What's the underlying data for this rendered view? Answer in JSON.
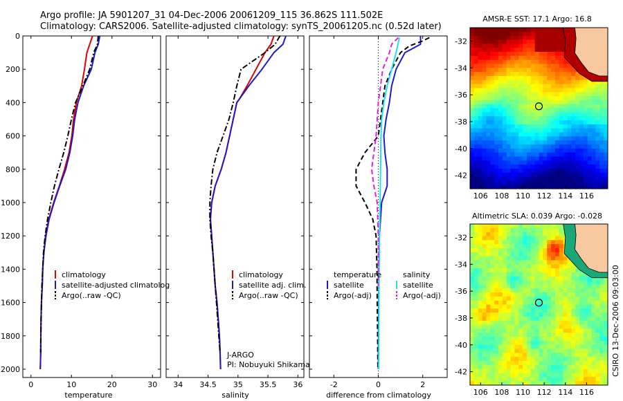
{
  "header": {
    "line1": "Argo profile: JA 5901207_31 04-Dec-2006 20061209_115 36.862S 111.502E",
    "line2": "Climatology: CARS2006. Satellite-adjusted climatology: synTS_20061205.nc (0.52d later)"
  },
  "footer_vertical": "CSIRO 13-Dec-2006 09:03:00",
  "colors": {
    "climatology": "#e00000",
    "satellite": "#1a1acc",
    "argo": "#000000",
    "satellite_salinity": "#22e0e8",
    "argo_adj_salinity": "#e020e0",
    "land": "#f8c8a0"
  },
  "chart_data": [
    {
      "type": "line",
      "panel": "temperature",
      "xlabel": "temperature",
      "ylabel": "",
      "xlim": [
        -2,
        32
      ],
      "ylim": [
        2050,
        0
      ],
      "xticks": [
        0,
        10,
        20,
        30
      ],
      "yticks": [
        0,
        200,
        400,
        600,
        800,
        1000,
        1200,
        1400,
        1600,
        1800,
        2000
      ],
      "legend": [
        "climatology",
        "satellite-adjusted climatolog",
        "Argo(..raw -QC)"
      ],
      "series": [
        {
          "name": "climatology",
          "style": "solid",
          "color": "#e00000",
          "points": [
            [
              15.2,
              0
            ],
            [
              14.5,
              50
            ],
            [
              13.8,
              100
            ],
            [
              13.2,
              200
            ],
            [
              12.5,
              300
            ],
            [
              11.2,
              400
            ],
            [
              10.5,
              500
            ],
            [
              10.1,
              600
            ],
            [
              9.4,
              700
            ],
            [
              8.3,
              800
            ],
            [
              7.0,
              900
            ],
            [
              5.6,
              1000
            ],
            [
              4.4,
              1100
            ],
            [
              3.6,
              1200
            ],
            [
              3.2,
              1300
            ],
            [
              2.9,
              1400
            ],
            [
              2.8,
              1500
            ],
            [
              2.6,
              1600
            ],
            [
              2.5,
              1700
            ],
            [
              2.45,
              1800
            ],
            [
              2.4,
              1900
            ],
            [
              2.3,
              2000
            ]
          ]
        },
        {
          "name": "satellite-adjusted climatolog",
          "style": "solid",
          "color": "#1a1acc",
          "points": [
            [
              17.0,
              0
            ],
            [
              16.6,
              50
            ],
            [
              15.8,
              100
            ],
            [
              14.9,
              200
            ],
            [
              13.0,
              300
            ],
            [
              11.6,
              400
            ],
            [
              10.8,
              500
            ],
            [
              10.3,
              600
            ],
            [
              9.6,
              700
            ],
            [
              8.6,
              800
            ],
            [
              7.1,
              900
            ],
            [
              5.7,
              1000
            ],
            [
              4.5,
              1100
            ],
            [
              3.7,
              1200
            ],
            [
              3.2,
              1300
            ],
            [
              2.9,
              1400
            ],
            [
              2.8,
              1500
            ],
            [
              2.6,
              1600
            ],
            [
              2.5,
              1700
            ],
            [
              2.45,
              1800
            ],
            [
              2.4,
              1900
            ],
            [
              2.3,
              2000
            ]
          ]
        },
        {
          "name": "Argo(..raw -QC)",
          "style": "dashdot",
          "color": "#000000",
          "points": [
            [
              16.6,
              0
            ],
            [
              16.4,
              50
            ],
            [
              15.5,
              100
            ],
            [
              14.5,
              200
            ],
            [
              12.8,
              300
            ],
            [
              11.0,
              400
            ],
            [
              10.0,
              500
            ],
            [
              9.1,
              600
            ],
            [
              8.1,
              700
            ],
            [
              6.9,
              800
            ],
            [
              5.8,
              900
            ],
            [
              4.9,
              1000
            ],
            [
              4.1,
              1100
            ],
            [
              3.5,
              1200
            ],
            [
              3.1,
              1300
            ],
            [
              2.9,
              1400
            ],
            [
              2.7,
              1500
            ],
            [
              2.6,
              1600
            ],
            [
              2.5,
              1700
            ],
            [
              2.45,
              1800
            ],
            [
              2.4,
              1900
            ]
          ]
        }
      ]
    },
    {
      "type": "line",
      "panel": "salinity",
      "xlabel": "salinity",
      "xlim": [
        33.8,
        36.1
      ],
      "ylim": [
        2050,
        0
      ],
      "xticks": [
        34,
        34.5,
        35,
        35.5,
        36
      ],
      "yticks": [
        0,
        200,
        400,
        600,
        800,
        1000,
        1200,
        1400,
        1600,
        1800,
        2000
      ],
      "legend": [
        "climatology",
        "satellite adj. clim.",
        "Argo(..raw -QC)"
      ],
      "annotations": [
        "J-ARGO",
        "PI: Nobuyuki Shikama"
      ],
      "series": [
        {
          "name": "climatology",
          "style": "solid",
          "color": "#e00000",
          "points": [
            [
              35.6,
              0
            ],
            [
              35.55,
              50
            ],
            [
              35.45,
              100
            ],
            [
              35.3,
              200
            ],
            [
              35.15,
              300
            ],
            [
              35.02,
              380
            ],
            [
              34.98,
              400
            ],
            [
              34.92,
              500
            ],
            [
              34.86,
              600
            ],
            [
              34.8,
              700
            ],
            [
              34.72,
              800
            ],
            [
              34.62,
              900
            ],
            [
              34.56,
              1000
            ],
            [
              34.54,
              1100
            ],
            [
              34.56,
              1200
            ],
            [
              34.58,
              1300
            ],
            [
              34.6,
              1400
            ],
            [
              34.62,
              1500
            ],
            [
              34.65,
              1600
            ],
            [
              34.67,
              1700
            ],
            [
              34.69,
              1800
            ],
            [
              34.7,
              1900
            ],
            [
              34.71,
              2000
            ]
          ]
        },
        {
          "name": "satellite adj. clim.",
          "style": "solid",
          "color": "#1a1acc",
          "points": [
            [
              35.8,
              0
            ],
            [
              35.75,
              50
            ],
            [
              35.6,
              100
            ],
            [
              35.4,
              200
            ],
            [
              35.18,
              300
            ],
            [
              35.02,
              380
            ],
            [
              34.98,
              400
            ],
            [
              34.92,
              500
            ],
            [
              34.86,
              600
            ],
            [
              34.8,
              700
            ],
            [
              34.72,
              800
            ],
            [
              34.62,
              900
            ],
            [
              34.56,
              1000
            ],
            [
              34.54,
              1100
            ],
            [
              34.56,
              1200
            ],
            [
              34.58,
              1300
            ],
            [
              34.6,
              1400
            ],
            [
              34.62,
              1500
            ],
            [
              34.65,
              1600
            ],
            [
              34.67,
              1700
            ],
            [
              34.69,
              1800
            ],
            [
              34.7,
              1900
            ],
            [
              34.71,
              2000
            ]
          ]
        },
        {
          "name": "Argo(..raw -QC)",
          "style": "dashdot",
          "color": "#000000",
          "points": [
            [
              35.7,
              0
            ],
            [
              35.62,
              50
            ],
            [
              35.45,
              100
            ],
            [
              35.05,
              200
            ],
            [
              34.98,
              300
            ],
            [
              34.92,
              400
            ],
            [
              34.85,
              500
            ],
            [
              34.75,
              600
            ],
            [
              34.65,
              700
            ],
            [
              34.58,
              800
            ],
            [
              34.55,
              900
            ],
            [
              34.53,
              1000
            ],
            [
              34.53,
              1100
            ],
            [
              34.55,
              1200
            ],
            [
              34.58,
              1300
            ],
            [
              34.6,
              1400
            ],
            [
              34.62,
              1500
            ],
            [
              34.64,
              1600
            ],
            [
              34.66,
              1700
            ],
            [
              34.68,
              1800
            ],
            [
              34.7,
              1900
            ]
          ]
        }
      ]
    },
    {
      "type": "line",
      "panel": "difference",
      "xlabel": "difference from climatology",
      "xlim": [
        -3.1,
        3.1
      ],
      "ylim": [
        2050,
        0
      ],
      "xticks": [
        -2,
        0,
        2
      ],
      "yticks": [
        0,
        200,
        400,
        600,
        800,
        1000,
        1200,
        1400,
        1600,
        1800,
        2000
      ],
      "legend_titles": [
        "temperature",
        "salinity"
      ],
      "legend": [
        "satellite",
        "Argo(-adj)",
        "satellite",
        "Argo(-adj)"
      ],
      "series": [
        {
          "name": "satellite",
          "group": "temperature",
          "style": "solid",
          "color": "#1a1acc",
          "points": [
            [
              1.9,
              0
            ],
            [
              1.9,
              50
            ],
            [
              1.2,
              100
            ],
            [
              0.8,
              200
            ],
            [
              0.6,
              300
            ],
            [
              0.5,
              400
            ],
            [
              0.35,
              500
            ],
            [
              0.25,
              600
            ],
            [
              0.3,
              700
            ],
            [
              0.4,
              800
            ],
            [
              0.4,
              900
            ],
            [
              0.15,
              1000
            ],
            [
              0.1,
              1100
            ],
            [
              0.05,
              1200
            ],
            [
              0.03,
              1400
            ],
            [
              0.02,
              1600
            ],
            [
              0.01,
              1800
            ],
            [
              0.0,
              2000
            ]
          ]
        },
        {
          "name": "Argo(-adj)",
          "group": "temperature",
          "style": "dashed",
          "color": "#000000",
          "points": [
            [
              2.3,
              10
            ],
            [
              2.0,
              30
            ],
            [
              1.4,
              60
            ],
            [
              1.0,
              100
            ],
            [
              0.6,
              200
            ],
            [
              0.3,
              300
            ],
            [
              0.1,
              500
            ],
            [
              0.0,
              600
            ],
            [
              -0.6,
              700
            ],
            [
              -1.0,
              800
            ],
            [
              -1.0,
              900
            ],
            [
              -0.6,
              1000
            ],
            [
              -0.25,
              1100
            ],
            [
              -0.1,
              1200
            ],
            [
              -0.06,
              1400
            ],
            [
              -0.05,
              1600
            ],
            [
              -0.03,
              1800
            ],
            [
              -0.02,
              2000
            ]
          ]
        },
        {
          "name": "satellite",
          "group": "salinity",
          "style": "solid",
          "color": "#22e0e8",
          "points": [
            [
              0.95,
              10
            ],
            [
              0.8,
              100
            ],
            [
              0.6,
              200
            ],
            [
              0.4,
              300
            ],
            [
              0.25,
              400
            ],
            [
              0.15,
              500
            ],
            [
              0.12,
              600
            ],
            [
              0.1,
              800
            ],
            [
              0.08,
              1000
            ],
            [
              0.05,
              1200
            ],
            [
              0.03,
              1500
            ],
            [
              0.02,
              2000
            ]
          ]
        },
        {
          "name": "Argo(-adj)",
          "group": "salinity",
          "style": "dashed",
          "color": "#e020e0",
          "points": [
            [
              0.9,
              10
            ],
            [
              0.6,
              50
            ],
            [
              0.5,
              100
            ],
            [
              0.2,
              200
            ],
            [
              0.0,
              400
            ],
            [
              -0.05,
              500
            ],
            [
              -0.1,
              600
            ],
            [
              -0.3,
              800
            ],
            [
              -0.2,
              900
            ],
            [
              -0.05,
              1000
            ],
            [
              0.0,
              1200
            ],
            [
              0.0,
              1500
            ]
          ]
        }
      ]
    },
    {
      "type": "heatmap",
      "panel": "sst-map",
      "title": "AMSR-E SST: 17.1 Argo: 16.8",
      "xlim": [
        105,
        118
      ],
      "ylim": [
        -43,
        -31
      ],
      "xticks": [
        106,
        108,
        110,
        112,
        114,
        116
      ],
      "yticks": [
        -32,
        -34,
        -36,
        -38,
        -40,
        -42
      ],
      "marker": {
        "lon": 111.5,
        "lat": -36.86
      }
    },
    {
      "type": "heatmap",
      "panel": "sla-map",
      "title": "Altimetric SLA: 0.039 Argo: -0.028",
      "xlim": [
        105,
        118
      ],
      "ylim": [
        -43,
        -31
      ],
      "xticks": [
        106,
        108,
        110,
        112,
        114,
        116
      ],
      "yticks": [
        -32,
        -34,
        -36,
        -38,
        -40,
        -42
      ],
      "marker": {
        "lon": 111.5,
        "lat": -36.86
      }
    }
  ]
}
